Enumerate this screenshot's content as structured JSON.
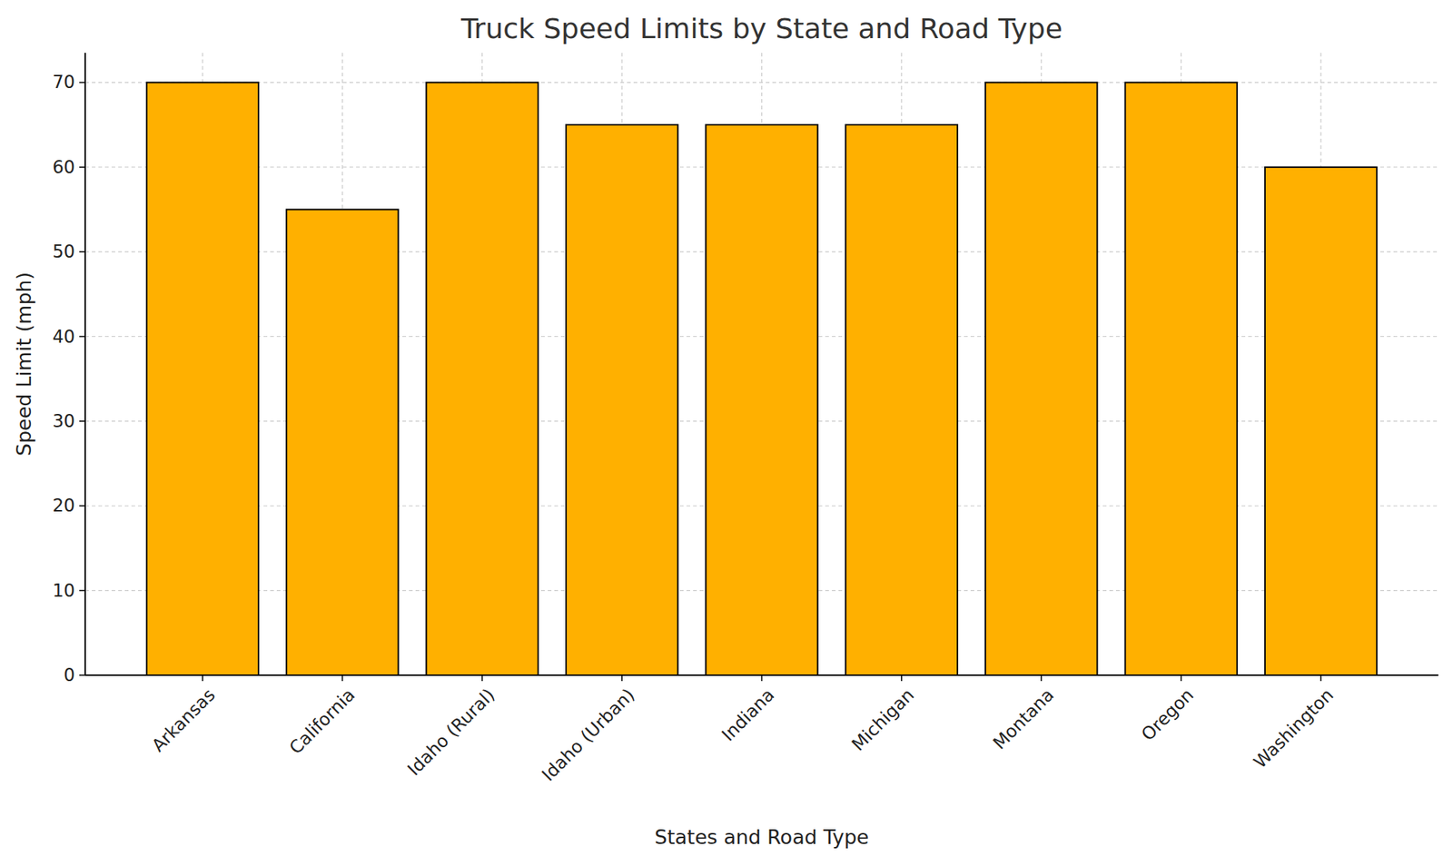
{
  "chart_data": {
    "type": "bar",
    "title": "Truck Speed Limits by State and Road Type",
    "x_label": "States and Road Type",
    "y_label": "Speed Limit (mph)",
    "categories": [
      "Arkansas",
      "California",
      "Idaho (Rural)",
      "Idaho (Urban)",
      "Indiana",
      "Michigan",
      "Montana",
      "Oregon",
      "Washington"
    ],
    "values": [
      70,
      55,
      70,
      65,
      65,
      65,
      70,
      70,
      60
    ],
    "color": "#ffb000",
    "ylim": [
      0,
      73.5
    ],
    "yticks": [
      0,
      10,
      20,
      30,
      40,
      50,
      60,
      70
    ],
    "grid": true
  }
}
